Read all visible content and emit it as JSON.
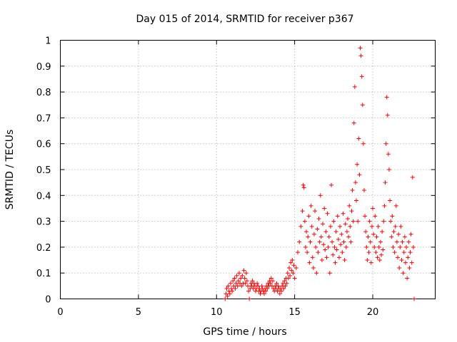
{
  "chart_data": {
    "type": "scatter",
    "title": "Day 015 of 2014, SRMTID for receiver p367",
    "xlabel": "GPS time / hours",
    "ylabel": "SRMTID / TECUs",
    "xlim": [
      0,
      24
    ],
    "ylim": [
      0,
      1
    ],
    "x_ticks": [
      0,
      5,
      10,
      15,
      20
    ],
    "x_tick_labels": [
      "0",
      "5",
      "10",
      "15",
      "20"
    ],
    "y_ticks": [
      0,
      0.1,
      0.2,
      0.3,
      0.4,
      0.5,
      0.6,
      0.7,
      0.8,
      0.9,
      1
    ],
    "y_tick_labels": [
      "0",
      "0.1",
      "0.2",
      "0.3",
      "0.4",
      "0.5",
      "0.6",
      "0.7",
      "0.8",
      "0.9",
      "1"
    ],
    "grid": true,
    "marker": "+",
    "marker_color": "#ff0000",
    "series": [
      {
        "name": "SRMTID",
        "points": [
          [
            10.55,
            0.0
          ],
          [
            10.6,
            0.02
          ],
          [
            10.65,
            0.04
          ],
          [
            10.7,
            0.01
          ],
          [
            10.75,
            0.05
          ],
          [
            10.8,
            0.03
          ],
          [
            10.85,
            0.02
          ],
          [
            10.9,
            0.06
          ],
          [
            10.95,
            0.04
          ],
          [
            11.0,
            0.03
          ],
          [
            11.05,
            0.07
          ],
          [
            11.1,
            0.05
          ],
          [
            11.15,
            0.08
          ],
          [
            11.2,
            0.04
          ],
          [
            11.25,
            0.06
          ],
          [
            11.3,
            0.09
          ],
          [
            11.35,
            0.05
          ],
          [
            11.4,
            0.07
          ],
          [
            11.45,
            0.1
          ],
          [
            11.5,
            0.06
          ],
          [
            11.55,
            0.08
          ],
          [
            11.6,
            0.05
          ],
          [
            11.65,
            0.09
          ],
          [
            11.7,
            0.06
          ],
          [
            11.75,
            0.11
          ],
          [
            11.8,
            0.08
          ],
          [
            11.85,
            0.06
          ],
          [
            11.9,
            0.1
          ],
          [
            11.95,
            0.07
          ],
          [
            12.0,
            0.05
          ],
          [
            12.05,
            0.03
          ],
          [
            12.1,
            0.0
          ],
          [
            12.15,
            0.04
          ],
          [
            12.2,
            0.06
          ],
          [
            12.25,
            0.05
          ],
          [
            12.3,
            0.07
          ],
          [
            12.35,
            0.04
          ],
          [
            12.4,
            0.06
          ],
          [
            12.45,
            0.05
          ],
          [
            12.5,
            0.03
          ],
          [
            12.55,
            0.04
          ],
          [
            12.6,
            0.06
          ],
          [
            12.65,
            0.05
          ],
          [
            12.7,
            0.03
          ],
          [
            12.75,
            0.04
          ],
          [
            12.8,
            0.02
          ],
          [
            12.85,
            0.03
          ],
          [
            12.9,
            0.05
          ],
          [
            12.95,
            0.04
          ],
          [
            13.0,
            0.03
          ],
          [
            13.05,
            0.02
          ],
          [
            13.1,
            0.04
          ],
          [
            13.15,
            0.03
          ],
          [
            13.2,
            0.05
          ],
          [
            13.25,
            0.04
          ],
          [
            13.3,
            0.06
          ],
          [
            13.35,
            0.05
          ],
          [
            13.4,
            0.07
          ],
          [
            13.45,
            0.06
          ],
          [
            13.5,
            0.08
          ],
          [
            13.55,
            0.05
          ],
          [
            13.6,
            0.07
          ],
          [
            13.65,
            0.04
          ],
          [
            13.7,
            0.03
          ],
          [
            13.75,
            0.05
          ],
          [
            13.8,
            0.04
          ],
          [
            13.85,
            0.06
          ],
          [
            13.9,
            0.03
          ],
          [
            13.95,
            0.05
          ],
          [
            14.0,
            0.04
          ],
          [
            14.05,
            0.02
          ],
          [
            14.1,
            0.04
          ],
          [
            14.15,
            0.03
          ],
          [
            14.2,
            0.05
          ],
          [
            14.25,
            0.06
          ],
          [
            14.3,
            0.04
          ],
          [
            14.35,
            0.07
          ],
          [
            14.4,
            0.05
          ],
          [
            14.45,
            0.08
          ],
          [
            14.5,
            0.06
          ],
          [
            14.55,
            0.1
          ],
          [
            14.6,
            0.08
          ],
          [
            14.65,
            0.12
          ],
          [
            14.7,
            0.09
          ],
          [
            14.75,
            0.14
          ],
          [
            14.8,
            0.11
          ],
          [
            14.85,
            0.15
          ],
          [
            14.9,
            0.1
          ],
          [
            14.95,
            0.13
          ],
          [
            15.0,
            0.08
          ],
          [
            15.1,
            0.12
          ],
          [
            15.2,
            0.18
          ],
          [
            15.3,
            0.22
          ],
          [
            15.4,
            0.28
          ],
          [
            15.5,
            0.34
          ],
          [
            15.55,
            0.44
          ],
          [
            15.6,
            0.43
          ],
          [
            15.65,
            0.3
          ],
          [
            15.7,
            0.2
          ],
          [
            15.75,
            0.26
          ],
          [
            15.8,
            0.18
          ],
          [
            15.85,
            0.24
          ],
          [
            15.9,
            0.32
          ],
          [
            15.95,
            0.14
          ],
          [
            16.0,
            0.22
          ],
          [
            16.05,
            0.36
          ],
          [
            16.1,
            0.28
          ],
          [
            16.15,
            0.16
          ],
          [
            16.2,
            0.12
          ],
          [
            16.25,
            0.25
          ],
          [
            16.3,
            0.34
          ],
          [
            16.35,
            0.2
          ],
          [
            16.4,
            0.1
          ],
          [
            16.45,
            0.27
          ],
          [
            16.5,
            0.18
          ],
          [
            16.55,
            0.31
          ],
          [
            16.6,
            0.22
          ],
          [
            16.65,
            0.4
          ],
          [
            16.7,
            0.24
          ],
          [
            16.75,
            0.15
          ],
          [
            16.8,
            0.29
          ],
          [
            16.85,
            0.21
          ],
          [
            16.9,
            0.35
          ],
          [
            16.95,
            0.19
          ],
          [
            17.0,
            0.26
          ],
          [
            17.05,
            0.16
          ],
          [
            17.1,
            0.33
          ],
          [
            17.15,
            0.2
          ],
          [
            17.2,
            0.24
          ],
          [
            17.25,
            0.1
          ],
          [
            17.3,
            0.28
          ],
          [
            17.35,
            0.44
          ],
          [
            17.4,
            0.22
          ],
          [
            17.45,
            0.17
          ],
          [
            17.5,
            0.3
          ],
          [
            17.55,
            0.2
          ],
          [
            17.6,
            0.14
          ],
          [
            17.65,
            0.26
          ],
          [
            17.7,
            0.19
          ],
          [
            17.75,
            0.32
          ],
          [
            17.8,
            0.23
          ],
          [
            17.85,
            0.16
          ],
          [
            17.9,
            0.28
          ],
          [
            17.95,
            0.21
          ],
          [
            18.0,
            0.25
          ],
          [
            18.05,
            0.18
          ],
          [
            18.1,
            0.33
          ],
          [
            18.15,
            0.22
          ],
          [
            18.2,
            0.15
          ],
          [
            18.25,
            0.29
          ],
          [
            18.3,
            0.2
          ],
          [
            18.35,
            0.26
          ],
          [
            18.4,
            0.31
          ],
          [
            18.45,
            0.24
          ],
          [
            18.5,
            0.36
          ],
          [
            18.55,
            0.28
          ],
          [
            18.6,
            0.22
          ],
          [
            18.65,
            0.34
          ],
          [
            18.7,
            0.42
          ],
          [
            18.75,
            0.3
          ],
          [
            18.8,
            0.68
          ],
          [
            18.85,
            0.82
          ],
          [
            18.9,
            0.45
          ],
          [
            18.95,
            0.38
          ],
          [
            19.0,
            0.52
          ],
          [
            19.05,
            0.3
          ],
          [
            19.1,
            0.62
          ],
          [
            19.15,
            0.48
          ],
          [
            19.2,
            0.97
          ],
          [
            19.25,
            0.94
          ],
          [
            19.3,
            0.86
          ],
          [
            19.35,
            0.75
          ],
          [
            19.4,
            0.6
          ],
          [
            19.45,
            0.42
          ],
          [
            19.5,
            0.32
          ],
          [
            19.55,
            0.26
          ],
          [
            19.6,
            0.2
          ],
          [
            19.65,
            0.15
          ],
          [
            19.7,
            0.24
          ],
          [
            19.75,
            0.18
          ],
          [
            19.8,
            0.3
          ],
          [
            19.85,
            0.22
          ],
          [
            19.9,
            0.14
          ],
          [
            19.95,
            0.28
          ],
          [
            20.0,
            0.35
          ],
          [
            20.05,
            0.25
          ],
          [
            20.1,
            0.2
          ],
          [
            20.15,
            0.32
          ],
          [
            20.2,
            0.18
          ],
          [
            20.25,
            0.24
          ],
          [
            20.3,
            0.16
          ],
          [
            20.35,
            0.28
          ],
          [
            20.4,
            0.2
          ],
          [
            20.45,
            0.15
          ],
          [
            20.5,
            0.22
          ],
          [
            20.55,
            0.17
          ],
          [
            20.6,
            0.26
          ],
          [
            20.65,
            0.19
          ],
          [
            20.7,
            0.3
          ],
          [
            20.75,
            0.36
          ],
          [
            20.8,
            0.45
          ],
          [
            20.85,
            0.6
          ],
          [
            20.9,
            0.78
          ],
          [
            20.95,
            0.71
          ],
          [
            21.0,
            0.56
          ],
          [
            21.05,
            0.5
          ],
          [
            21.1,
            0.38
          ],
          [
            21.15,
            0.3
          ],
          [
            21.2,
            0.24
          ],
          [
            21.25,
            0.32
          ],
          [
            21.3,
            0.2
          ],
          [
            21.35,
            0.26
          ],
          [
            21.4,
            0.18
          ],
          [
            21.45,
            0.28
          ],
          [
            21.5,
            0.36
          ],
          [
            21.55,
            0.22
          ],
          [
            21.6,
            0.16
          ],
          [
            21.65,
            0.25
          ],
          [
            21.7,
            0.12
          ],
          [
            21.75,
            0.2
          ],
          [
            21.8,
            0.28
          ],
          [
            21.85,
            0.15
          ],
          [
            21.9,
            0.22
          ],
          [
            21.95,
            0.1
          ],
          [
            22.0,
            0.18
          ],
          [
            22.05,
            0.24
          ],
          [
            22.1,
            0.14
          ],
          [
            22.15,
            0.2
          ],
          [
            22.2,
            0.08
          ],
          [
            22.25,
            0.16
          ],
          [
            22.3,
            0.22
          ],
          [
            22.35,
            0.12
          ],
          [
            22.4,
            0.18
          ],
          [
            22.45,
            0.25
          ],
          [
            22.5,
            0.14
          ],
          [
            22.55,
            0.47
          ],
          [
            22.6,
            0.2
          ],
          [
            22.65,
            0.0
          ]
        ]
      }
    ]
  }
}
